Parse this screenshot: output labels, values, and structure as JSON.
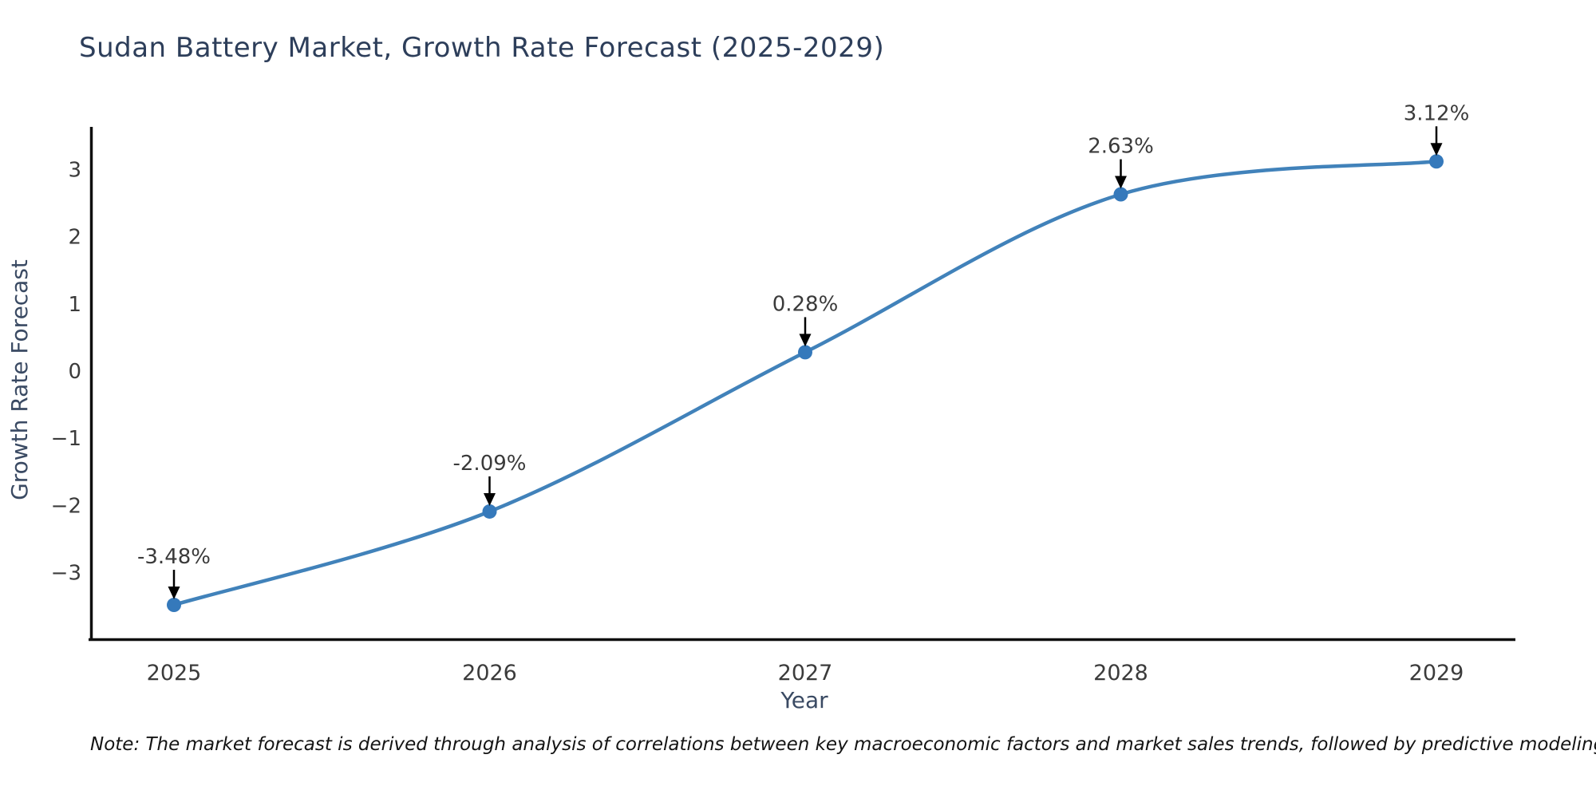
{
  "page": {
    "background": "#ffffff"
  },
  "chart_data": {
    "type": "line",
    "title": "Sudan Battery Market, Growth Rate Forecast (2025-2029)",
    "xlabel": "Year",
    "ylabel": "Growth Rate Forecast",
    "x": [
      2025,
      2026,
      2027,
      2028,
      2029
    ],
    "series": [
      {
        "name": "Growth Rate Forecast",
        "values": [
          -3.48,
          -2.09,
          0.28,
          2.63,
          3.12
        ]
      }
    ],
    "point_labels": [
      "-3.48%",
      "-2.09%",
      "0.28%",
      "2.63%",
      "3.12%"
    ],
    "x_tick_labels": [
      "2025",
      "2026",
      "2027",
      "2028",
      "2029"
    ],
    "y_ticks": [
      3,
      2,
      1,
      0,
      -1,
      -2,
      -3
    ],
    "y_tick_labels": [
      "3",
      "2",
      "1",
      "0",
      "−1",
      "−2",
      "−3"
    ],
    "xlim": [
      2024.73,
      2029.25
    ],
    "ylim": [
      -4.0,
      3.62
    ],
    "grid": false,
    "legend": false,
    "colors": {
      "line": "#4182ba",
      "marker": "#3579bb",
      "spine": "#0f0f0f",
      "tick_label": "#3b3b3b",
      "annotation_text": "#3a3a3a",
      "annotation_arrow": "#000000",
      "title": "#2d3e5a",
      "axis_label": "#3a4a63"
    },
    "note": "Note: The market forecast is derived through analysis of correlations between key macroeconomic factors and market sales trends, followed by predictive modeling to project future sales"
  }
}
